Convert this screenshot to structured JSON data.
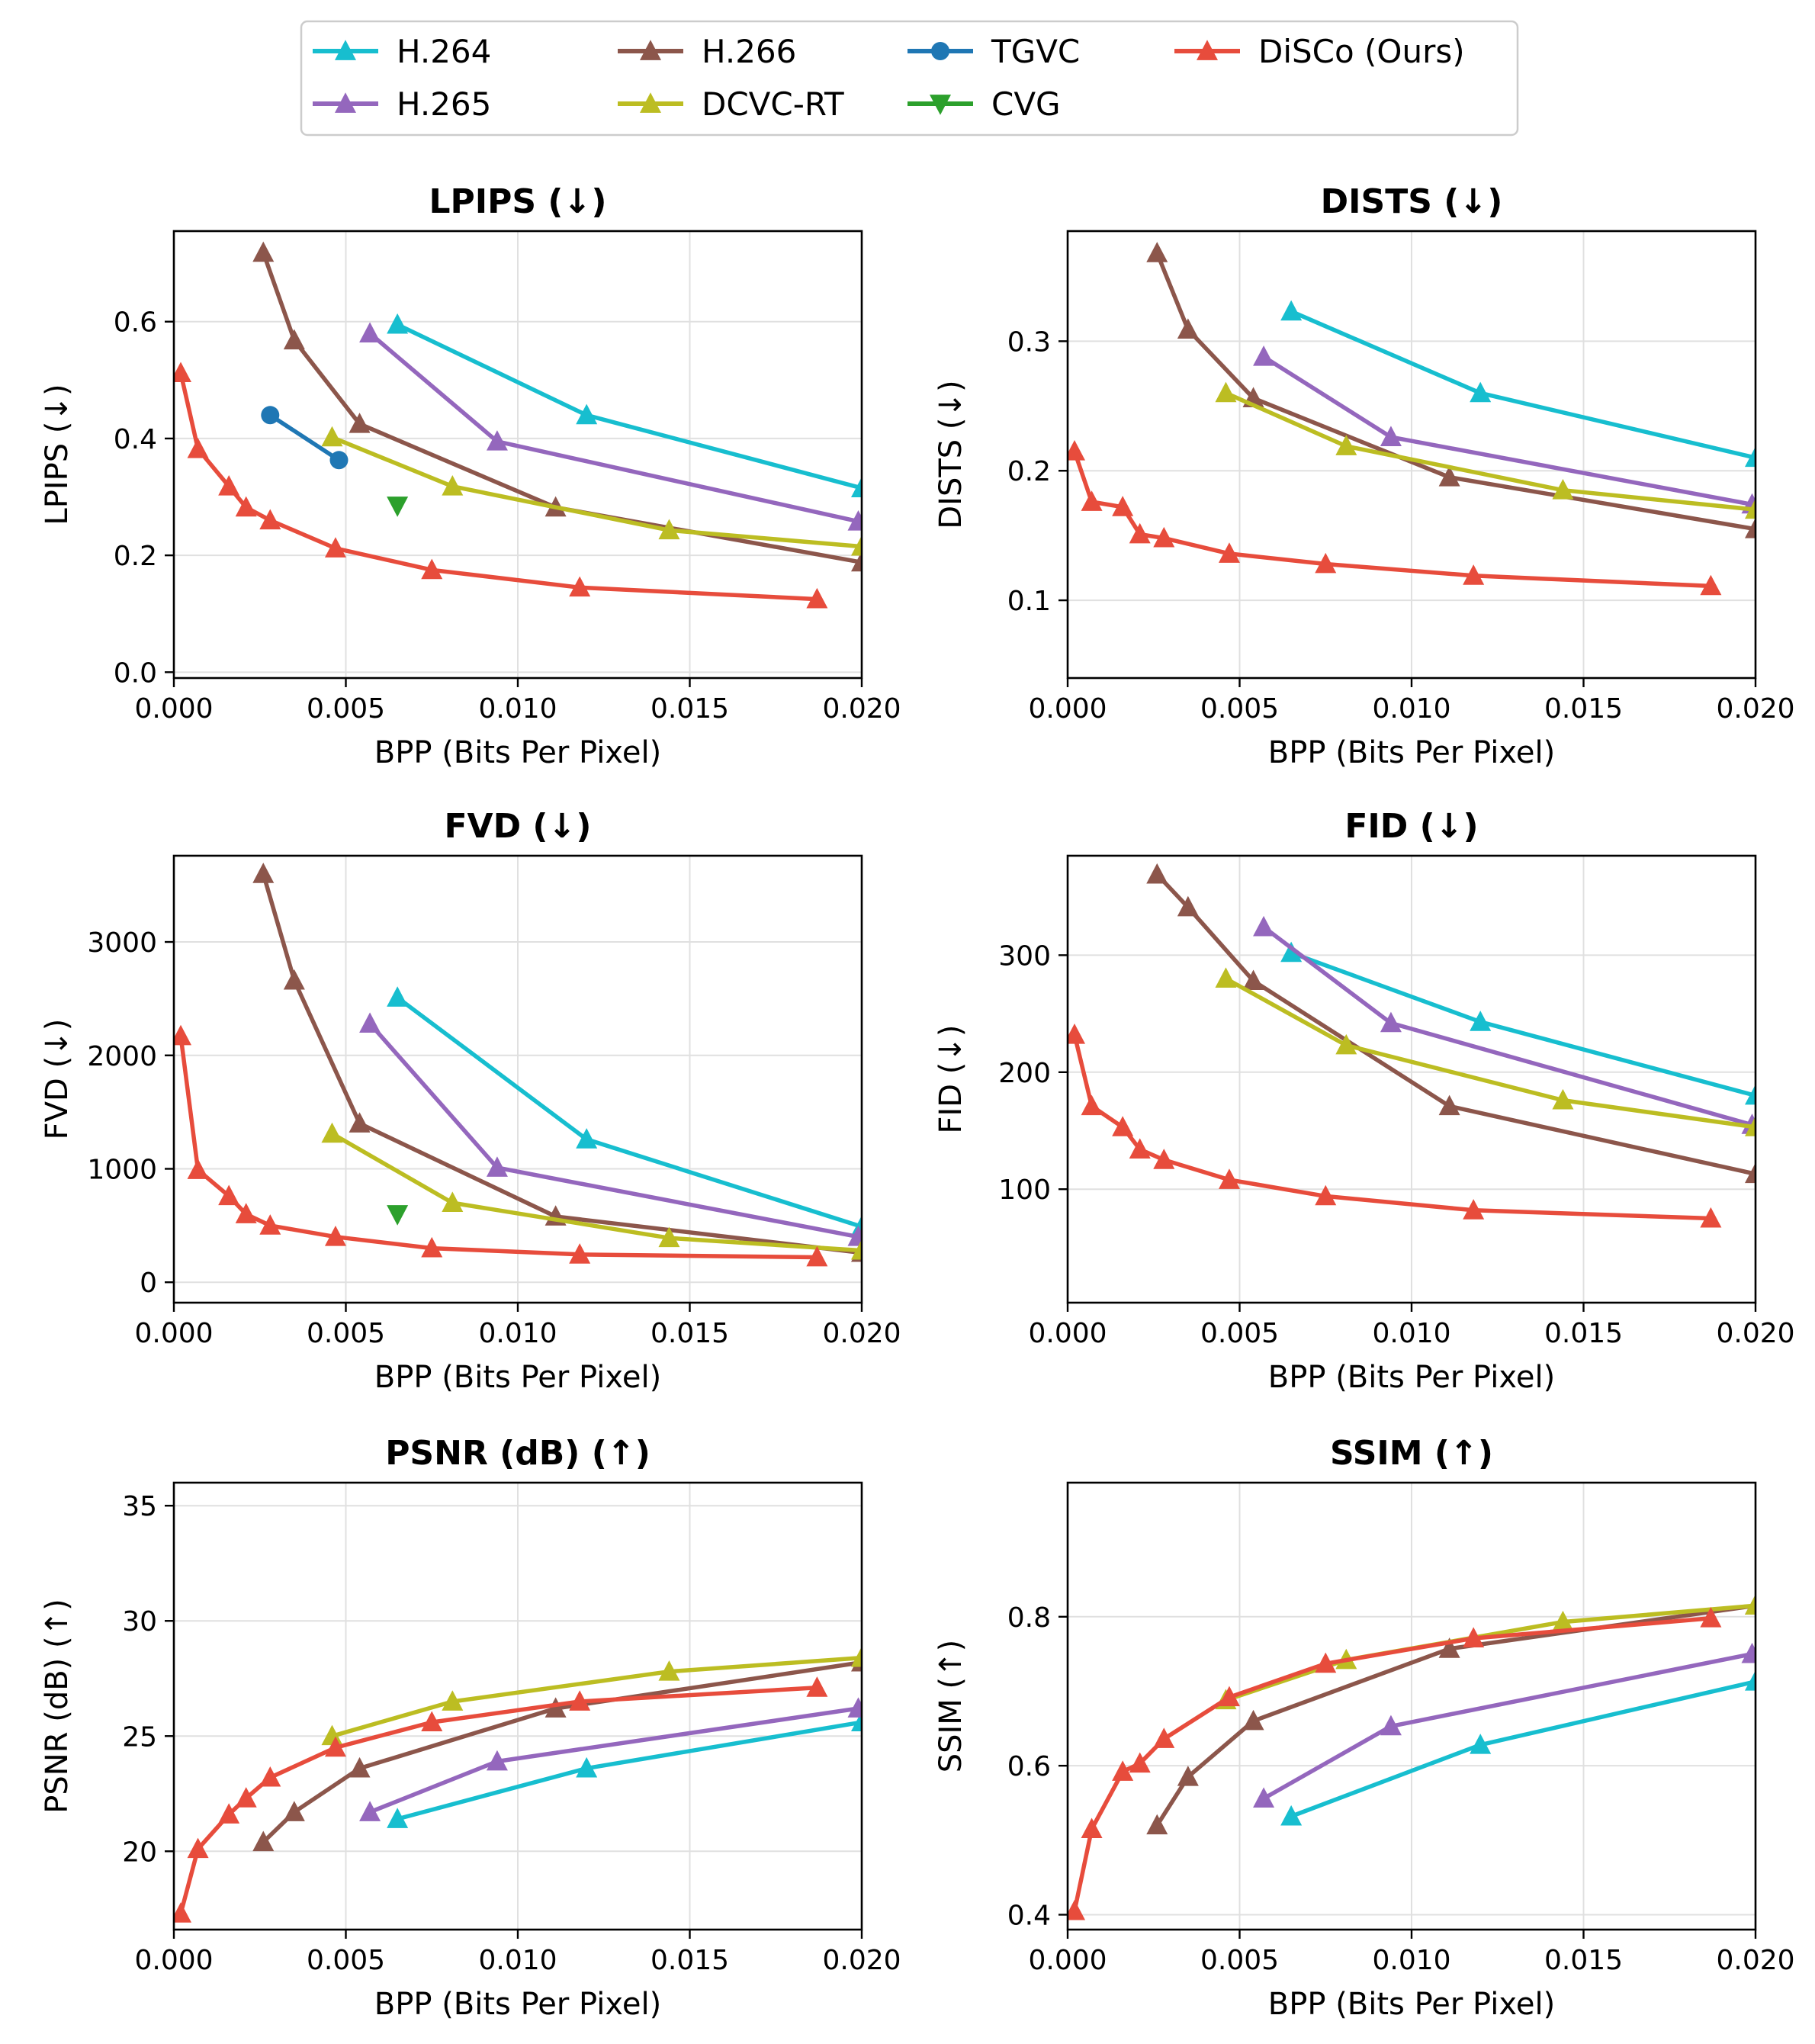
{
  "legend": [
    {
      "name": "H.264",
      "color": "#17becf",
      "marker": "triangle-up"
    },
    {
      "name": "H.265",
      "color": "#9467bd",
      "marker": "triangle-up"
    },
    {
      "name": "H.266",
      "color": "#8c564b",
      "marker": "triangle-up"
    },
    {
      "name": "DCVC-RT",
      "color": "#bcbd22",
      "marker": "triangle-up"
    },
    {
      "name": "TGVC",
      "color": "#1f77b4",
      "marker": "circle"
    },
    {
      "name": "CVG",
      "color": "#2ca02c",
      "marker": "triangle-down"
    },
    {
      "name": "DiSCo (Ours)",
      "color": "#e74c3c",
      "marker": "triangle-up"
    }
  ],
  "chart_data": [
    {
      "type": "line",
      "title": "LPIPS (↓)",
      "xlabel": "BPP (Bits Per Pixel)",
      "ylabel": "LPIPS (↓)",
      "xlim": [
        0,
        0.02
      ],
      "ylim": [
        -0.01,
        0.755
      ],
      "xticks": [
        0,
        0.005,
        0.01,
        0.015,
        0.02
      ],
      "xtick_labels": [
        "0.000",
        "0.005",
        "0.010",
        "0.015",
        "0.020"
      ],
      "yticks": [
        0,
        0.2,
        0.4,
        0.6
      ],
      "ytick_labels": [
        "0.0",
        "0.2",
        "0.4",
        "0.6"
      ],
      "series": [
        {
          "name": "H.264",
          "x": [
            0.0065,
            0.012,
            0.02
          ],
          "y": [
            0.595,
            0.44,
            0.315
          ]
        },
        {
          "name": "H.265",
          "x": [
            0.0057,
            0.0094,
            0.0199
          ],
          "y": [
            0.58,
            0.395,
            0.258
          ]
        },
        {
          "name": "H.266",
          "x": [
            0.0026,
            0.0035,
            0.0054,
            0.0111,
            0.02
          ],
          "y": [
            0.718,
            0.568,
            0.425,
            0.282,
            0.188
          ]
        },
        {
          "name": "DCVC-RT",
          "x": [
            0.0046,
            0.0081,
            0.0144,
            0.02
          ],
          "y": [
            0.402,
            0.318,
            0.243,
            0.215
          ]
        },
        {
          "name": "TGVC",
          "x": [
            0.0028,
            0.0048
          ],
          "y": [
            0.44,
            0.363
          ]
        },
        {
          "name": "CVG",
          "x": [
            0.0065
          ],
          "y": [
            0.285
          ]
        },
        {
          "name": "DiSCo (Ours)",
          "x": [
            0.0002,
            0.0007,
            0.0016,
            0.0021,
            0.0028,
            0.0047,
            0.0075,
            0.0118,
            0.0187
          ],
          "y": [
            0.512,
            0.382,
            0.318,
            0.282,
            0.26,
            0.212,
            0.175,
            0.145,
            0.125
          ]
        }
      ]
    },
    {
      "type": "line",
      "title": "DISTS (↓)",
      "xlabel": "BPP (Bits Per Pixel)",
      "ylabel": "DISTS (↓)",
      "xlim": [
        0,
        0.02
      ],
      "ylim": [
        0.04,
        0.385
      ],
      "xticks": [
        0,
        0.005,
        0.01,
        0.015,
        0.02
      ],
      "xtick_labels": [
        "0.000",
        "0.005",
        "0.010",
        "0.015",
        "0.020"
      ],
      "yticks": [
        0.1,
        0.2,
        0.3
      ],
      "ytick_labels": [
        "0.1",
        "0.2",
        "0.3"
      ],
      "series": [
        {
          "name": "H.264",
          "x": [
            0.0065,
            0.012,
            0.02
          ],
          "y": [
            0.323,
            0.26,
            0.21
          ]
        },
        {
          "name": "H.265",
          "x": [
            0.0057,
            0.0094,
            0.0199
          ],
          "y": [
            0.288,
            0.226,
            0.174
          ]
        },
        {
          "name": "H.266",
          "x": [
            0.0026,
            0.0035,
            0.0054,
            0.0111,
            0.02
          ],
          "y": [
            0.368,
            0.309,
            0.256,
            0.195,
            0.155
          ]
        },
        {
          "name": "DCVC-RT",
          "x": [
            0.0046,
            0.0081,
            0.0144,
            0.02
          ],
          "y": [
            0.26,
            0.219,
            0.185,
            0.17
          ]
        },
        {
          "name": "DiSCo (Ours)",
          "x": [
            0.0002,
            0.0007,
            0.0016,
            0.0021,
            0.0028,
            0.0047,
            0.0075,
            0.0118,
            0.0187
          ],
          "y": [
            0.215,
            0.176,
            0.172,
            0.151,
            0.148,
            0.136,
            0.128,
            0.119,
            0.111
          ]
        }
      ]
    },
    {
      "type": "line",
      "title": "FVD (↓)",
      "xlabel": "BPP (Bits Per Pixel)",
      "ylabel": "FVD (↓)",
      "xlim": [
        0,
        0.02
      ],
      "ylim": [
        -180,
        3760
      ],
      "xticks": [
        0,
        0.005,
        0.01,
        0.015,
        0.02
      ],
      "xtick_labels": [
        "0.000",
        "0.005",
        "0.010",
        "0.015",
        "0.020"
      ],
      "yticks": [
        0,
        1000,
        2000,
        3000
      ],
      "ytick_labels": [
        "0",
        "1000",
        "2000",
        "3000"
      ],
      "series": [
        {
          "name": "H.264",
          "x": [
            0.0065,
            0.012,
            0.02
          ],
          "y": [
            2510,
            1260,
            490
          ]
        },
        {
          "name": "H.265",
          "x": [
            0.0057,
            0.0094,
            0.0199
          ],
          "y": [
            2280,
            1010,
            400
          ]
        },
        {
          "name": "H.266",
          "x": [
            0.0026,
            0.0035,
            0.0054,
            0.0111,
            0.02
          ],
          "y": [
            3600,
            2660,
            1400,
            580,
            260
          ]
        },
        {
          "name": "DCVC-RT",
          "x": [
            0.0046,
            0.0081,
            0.0144,
            0.02
          ],
          "y": [
            1310,
            700,
            390,
            280
          ]
        },
        {
          "name": "CVG",
          "x": [
            0.0065
          ],
          "y": [
            600
          ]
        },
        {
          "name": "DiSCo (Ours)",
          "x": [
            0.0002,
            0.0007,
            0.0016,
            0.0021,
            0.0028,
            0.0047,
            0.0075,
            0.0118,
            0.0187
          ],
          "y": [
            2170,
            990,
            760,
            600,
            500,
            400,
            300,
            245,
            220
          ]
        }
      ]
    },
    {
      "type": "line",
      "title": "FID (↓)",
      "xlabel": "BPP (Bits Per Pixel)",
      "ylabel": "FID (↓)",
      "xlim": [
        0,
        0.02
      ],
      "ylim": [
        3,
        385
      ],
      "xticks": [
        0,
        0.005,
        0.01,
        0.015,
        0.02
      ],
      "xtick_labels": [
        "0.000",
        "0.005",
        "0.010",
        "0.015",
        "0.020"
      ],
      "yticks": [
        100,
        200,
        300
      ],
      "ytick_labels": [
        "100",
        "200",
        "300"
      ],
      "series": [
        {
          "name": "H.264",
          "x": [
            0.0065,
            0.012,
            0.02
          ],
          "y": [
            302,
            243,
            180
          ]
        },
        {
          "name": "H.265",
          "x": [
            0.0057,
            0.0094,
            0.0199
          ],
          "y": [
            324,
            242,
            155
          ]
        },
        {
          "name": "H.266",
          "x": [
            0.0026,
            0.0035,
            0.0054,
            0.0111,
            0.02
          ],
          "y": [
            369,
            341,
            278,
            171,
            113
          ]
        },
        {
          "name": "DCVC-RT",
          "x": [
            0.0046,
            0.0081,
            0.0144,
            0.02
          ],
          "y": [
            280,
            223,
            176,
            153
          ]
        },
        {
          "name": "DiSCo (Ours)",
          "x": [
            0.0002,
            0.0007,
            0.0016,
            0.0021,
            0.0028,
            0.0047,
            0.0075,
            0.0118,
            0.0187
          ],
          "y": [
            232,
            171,
            153,
            134,
            125,
            108,
            94,
            82,
            75
          ]
        }
      ]
    },
    {
      "type": "line",
      "title": "PSNR (dB) (↑)",
      "xlabel": "BPP (Bits Per Pixel)",
      "ylabel": "PSNR (dB) (↑)",
      "xlim": [
        0,
        0.02
      ],
      "ylim": [
        16.6,
        36.0
      ],
      "xticks": [
        0,
        0.005,
        0.01,
        0.015,
        0.02
      ],
      "xtick_labels": [
        "0.000",
        "0.005",
        "0.010",
        "0.015",
        "0.020"
      ],
      "yticks": [
        20,
        25,
        30,
        35
      ],
      "ytick_labels": [
        "20",
        "25",
        "30",
        "35"
      ],
      "series": [
        {
          "name": "H.264",
          "x": [
            0.0065,
            0.012,
            0.02
          ],
          "y": [
            21.4,
            23.6,
            25.6
          ]
        },
        {
          "name": "H.265",
          "x": [
            0.0057,
            0.0094,
            0.0199
          ],
          "y": [
            21.7,
            23.9,
            26.2
          ]
        },
        {
          "name": "H.266",
          "x": [
            0.0026,
            0.0035,
            0.0054,
            0.0111,
            0.02
          ],
          "y": [
            20.4,
            21.7,
            23.6,
            26.2,
            28.2
          ]
        },
        {
          "name": "DCVC-RT",
          "x": [
            0.0046,
            0.0081,
            0.0144,
            0.02
          ],
          "y": [
            25.0,
            26.5,
            27.8,
            28.4
          ]
        },
        {
          "name": "DiSCo (Ours)",
          "x": [
            0.0002,
            0.0007,
            0.0016,
            0.0021,
            0.0028,
            0.0047,
            0.0075,
            0.0118,
            0.0187
          ],
          "y": [
            17.3,
            20.1,
            21.6,
            22.3,
            23.2,
            24.5,
            25.6,
            26.5,
            27.1
          ]
        }
      ]
    },
    {
      "type": "line",
      "title": "SSIM (↑)",
      "xlabel": "BPP (Bits Per Pixel)",
      "ylabel": "SSIM (↑)",
      "xlim": [
        0,
        0.02
      ],
      "ylim": [
        0.38,
        0.98
      ],
      "xticks": [
        0,
        0.005,
        0.01,
        0.015,
        0.02
      ],
      "xtick_labels": [
        "0.000",
        "0.005",
        "0.010",
        "0.015",
        "0.020"
      ],
      "yticks": [
        0.4,
        0.6,
        0.8
      ],
      "ytick_labels": [
        "0.4",
        "0.6",
        "0.8"
      ],
      "series": [
        {
          "name": "H.264",
          "x": [
            0.0065,
            0.012,
            0.02
          ],
          "y": [
            0.532,
            0.628,
            0.713
          ]
        },
        {
          "name": "H.265",
          "x": [
            0.0057,
            0.0094,
            0.0199
          ],
          "y": [
            0.556,
            0.653,
            0.75
          ]
        },
        {
          "name": "H.266",
          "x": [
            0.0026,
            0.0035,
            0.0054,
            0.0111,
            0.02
          ],
          "y": [
            0.52,
            0.585,
            0.66,
            0.757,
            0.815
          ]
        },
        {
          "name": "DCVC-RT",
          "x": [
            0.0046,
            0.0081,
            0.0144,
            0.02
          ],
          "y": [
            0.688,
            0.742,
            0.793,
            0.815
          ]
        },
        {
          "name": "DiSCo (Ours)",
          "x": [
            0.0002,
            0.0007,
            0.0016,
            0.0021,
            0.0028,
            0.0047,
            0.0075,
            0.0118,
            0.0187
          ],
          "y": [
            0.405,
            0.515,
            0.592,
            0.603,
            0.636,
            0.692,
            0.737,
            0.771,
            0.798
          ]
        }
      ]
    }
  ]
}
